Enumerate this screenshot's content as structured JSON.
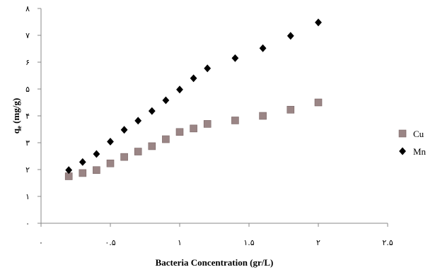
{
  "chart_data": {
    "type": "scatter",
    "xlabel": "Bacteria Concentration (gr/L)",
    "ylabel": "q",
    "ylabel_sub": "e",
    "ylabel_rest": " (mg/g)",
    "xlim": [
      0,
      2.5
    ],
    "ylim": [
      0,
      8
    ],
    "x_ticks": [
      {
        "value": 0,
        "label": "۰"
      },
      {
        "value": 0.5,
        "label": "۰.۵"
      },
      {
        "value": 1,
        "label": "۱"
      },
      {
        "value": 1.5,
        "label": "۱.۵"
      },
      {
        "value": 2,
        "label": "۲"
      },
      {
        "value": 2.5,
        "label": "۲.۵"
      }
    ],
    "y_ticks": [
      {
        "value": 0,
        "label": "۰"
      },
      {
        "value": 1,
        "label": "۱"
      },
      {
        "value": 2,
        "label": "۲"
      },
      {
        "value": 3,
        "label": "۳"
      },
      {
        "value": 4,
        "label": "۴"
      },
      {
        "value": 5,
        "label": "۵"
      },
      {
        "value": 6,
        "label": "۶"
      },
      {
        "value": 7,
        "label": "۷"
      },
      {
        "value": 8,
        "label": "۸"
      }
    ],
    "grid": false,
    "legend_position": "right",
    "series": [
      {
        "name": "Cu",
        "marker": "square",
        "color": "#9a8585",
        "stroke": "#7a6565",
        "points": [
          {
            "x": 0.2,
            "y": 1.75
          },
          {
            "x": 0.3,
            "y": 1.87
          },
          {
            "x": 0.4,
            "y": 1.98
          },
          {
            "x": 0.5,
            "y": 2.23
          },
          {
            "x": 0.6,
            "y": 2.47
          },
          {
            "x": 0.7,
            "y": 2.67
          },
          {
            "x": 0.8,
            "y": 2.87
          },
          {
            "x": 0.9,
            "y": 3.13
          },
          {
            "x": 1.0,
            "y": 3.4
          },
          {
            "x": 1.1,
            "y": 3.53
          },
          {
            "x": 1.2,
            "y": 3.7
          },
          {
            "x": 1.4,
            "y": 3.83
          },
          {
            "x": 1.6,
            "y": 4.0
          },
          {
            "x": 1.8,
            "y": 4.23
          },
          {
            "x": 2.0,
            "y": 4.5
          }
        ]
      },
      {
        "name": "Mn",
        "marker": "diamond",
        "color": "#000000",
        "stroke": "#000000",
        "points": [
          {
            "x": 0.2,
            "y": 1.98
          },
          {
            "x": 0.3,
            "y": 2.28
          },
          {
            "x": 0.4,
            "y": 2.58
          },
          {
            "x": 0.5,
            "y": 3.04
          },
          {
            "x": 0.6,
            "y": 3.48
          },
          {
            "x": 0.7,
            "y": 3.82
          },
          {
            "x": 0.8,
            "y": 4.18
          },
          {
            "x": 0.9,
            "y": 4.58
          },
          {
            "x": 1.0,
            "y": 4.98
          },
          {
            "x": 1.1,
            "y": 5.4
          },
          {
            "x": 1.2,
            "y": 5.77
          },
          {
            "x": 1.4,
            "y": 6.15
          },
          {
            "x": 1.6,
            "y": 6.52
          },
          {
            "x": 1.8,
            "y": 6.98
          },
          {
            "x": 2.0,
            "y": 7.48
          }
        ]
      }
    ]
  }
}
